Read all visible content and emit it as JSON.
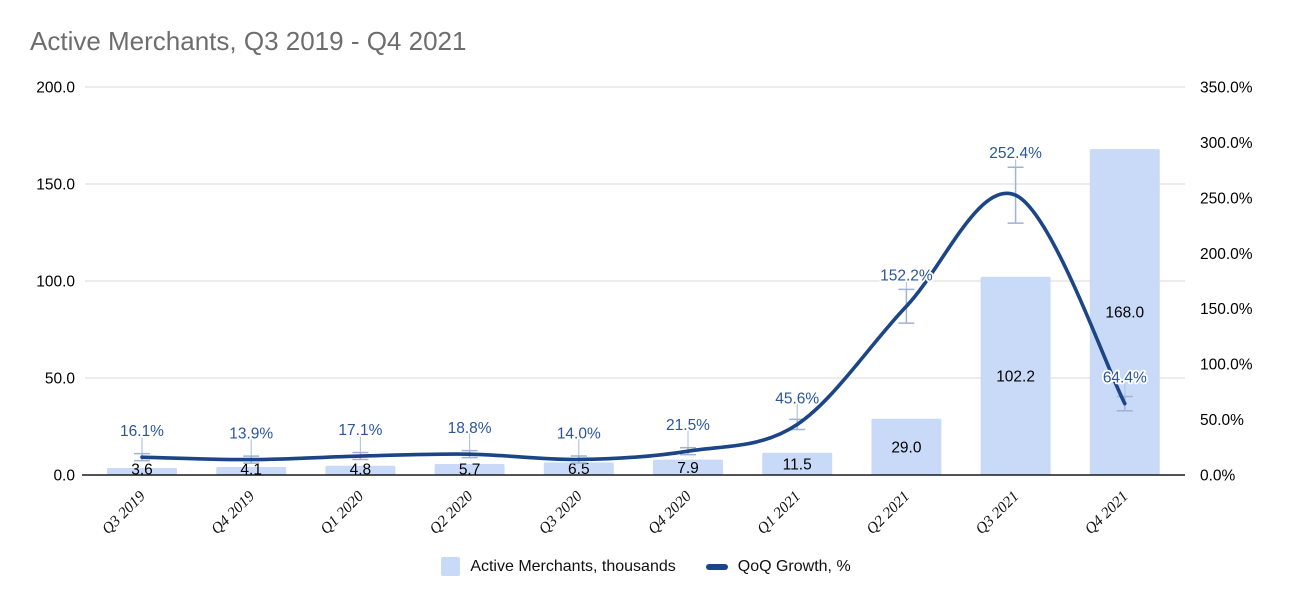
{
  "title": "Active Merchants, Q3 2019 - Q4 2021",
  "legend": {
    "items": [
      {
        "label": "Active Merchants, thousands",
        "marker": "square",
        "color": "#c9daf8"
      },
      {
        "label": "QoQ Growth, %",
        "marker": "line",
        "color": "#1c4587"
      }
    ]
  },
  "chart_data": {
    "type": "combo",
    "title": "Active Merchants, Q3 2019 - Q4 2021",
    "categories": [
      "Q3 2019",
      "Q4 2019",
      "Q1 2020",
      "Q2 2020",
      "Q3 2020",
      "Q4 2020",
      "Q1 2021",
      "Q2 2021",
      "Q3 2021",
      "Q4 2021"
    ],
    "series": [
      {
        "name": "Active Merchants, thousands",
        "type": "bar",
        "axis": "left",
        "color": "#c9daf8",
        "values": [
          3.6,
          4.1,
          4.8,
          5.7,
          6.5,
          7.9,
          11.5,
          29.0,
          102.2,
          168.0
        ],
        "labels": [
          "3.6",
          "4.1",
          "4.8",
          "5.7",
          "6.5",
          "7.9",
          "11.5",
          "29.0",
          "102.2",
          "168.0"
        ]
      },
      {
        "name": "QoQ Growth, %",
        "type": "line",
        "smooth": true,
        "axis": "right",
        "color": "#1c4587",
        "label_color": "#2b55a0",
        "error_bar_pct": 10,
        "values": [
          16.1,
          13.9,
          17.1,
          18.8,
          14.0,
          21.5,
          45.6,
          152.2,
          252.4,
          64.4
        ],
        "labels": [
          "16.1%",
          "13.9%",
          "17.1%",
          "18.8%",
          "14.0%",
          "21.5%",
          "45.6%",
          "152.2%",
          "252.4%",
          "64.4%"
        ]
      }
    ],
    "left_axis": {
      "min": 0,
      "max": 200,
      "ticks": [
        "200.0",
        "150.0",
        "100.0",
        "50.0",
        "0.0"
      ]
    },
    "right_axis": {
      "min": 0,
      "max": 350,
      "ticks": [
        "350.0%",
        "300.0%",
        "250.0%",
        "200.0%",
        "150.0%",
        "100.0%",
        "50.0%",
        "0.0%"
      ]
    },
    "grid": true,
    "legend_position": "bottom"
  },
  "colors": {
    "grid": "#dadada",
    "axis_line": "#1a1a1a",
    "title": "#6d6d6d",
    "tick_label": "#000000",
    "bar_label": "#000000",
    "whisker": "#9fb3d4",
    "leader": "#b8c6de"
  }
}
